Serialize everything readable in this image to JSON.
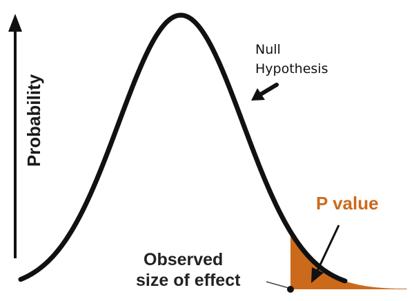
{
  "labels": {
    "y_axis": "Probability",
    "null_line1": "Null",
    "null_line2": "Hypothesis",
    "p_value": "P value",
    "observed_line1": "Observed",
    "observed_line2": "size of effect"
  },
  "colors": {
    "curve": "#111111",
    "shaded_region": "#cc6a1c",
    "p_value_text": "#cc6a1c",
    "arrow": "#111111"
  }
}
